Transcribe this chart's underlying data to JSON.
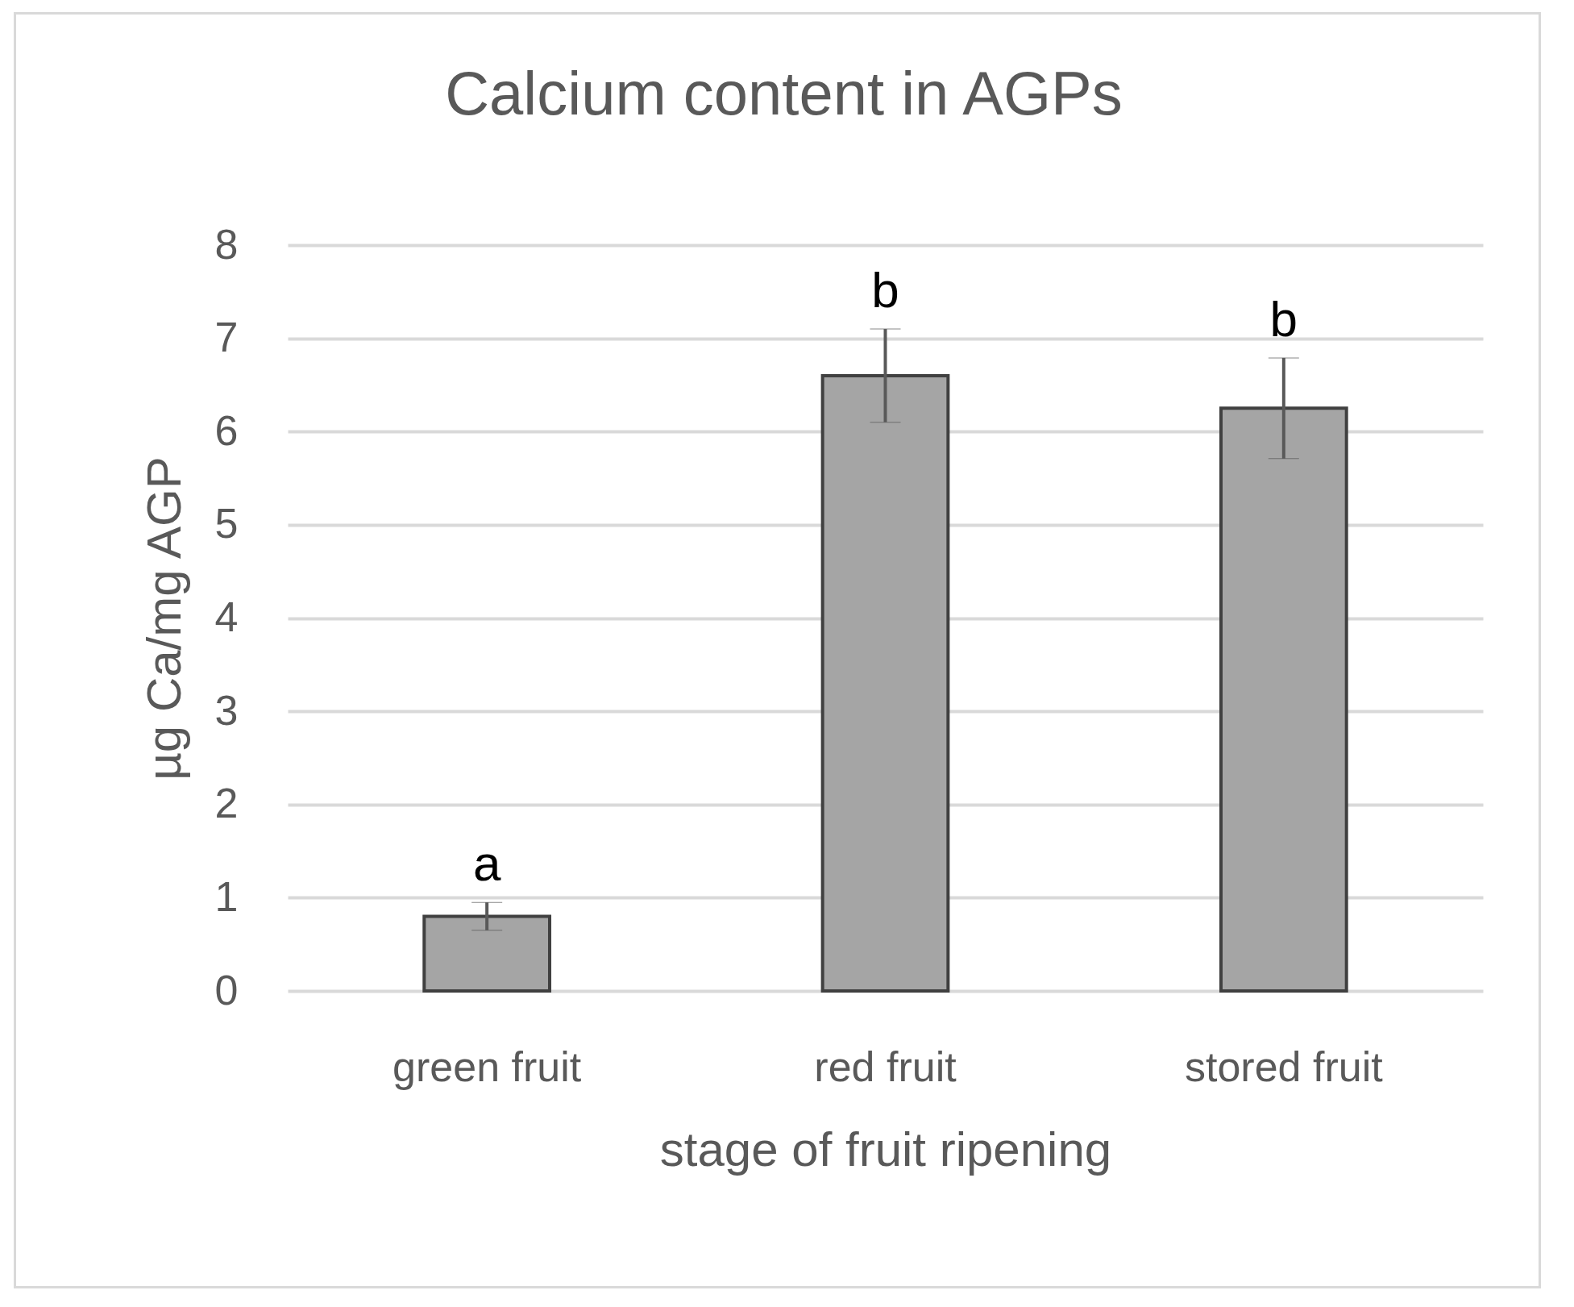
{
  "chart_data": {
    "type": "bar",
    "title": "Calcium content in AGPs",
    "xlabel": "stage of fruit ripening",
    "ylabel": "µg Ca/mg AGP",
    "categories": [
      "green fruit",
      "red fruit",
      "stored fruit"
    ],
    "values": [
      0.8,
      6.6,
      6.25
    ],
    "errors": [
      0.15,
      0.5,
      0.54
    ],
    "color": "#a5a5a5",
    "ylim": [
      0,
      8
    ],
    "yticks": [
      0,
      1,
      2,
      3,
      4,
      5,
      6,
      7,
      8
    ],
    "grid": "y",
    "annotations": [
      "a",
      "b",
      "b"
    ]
  }
}
